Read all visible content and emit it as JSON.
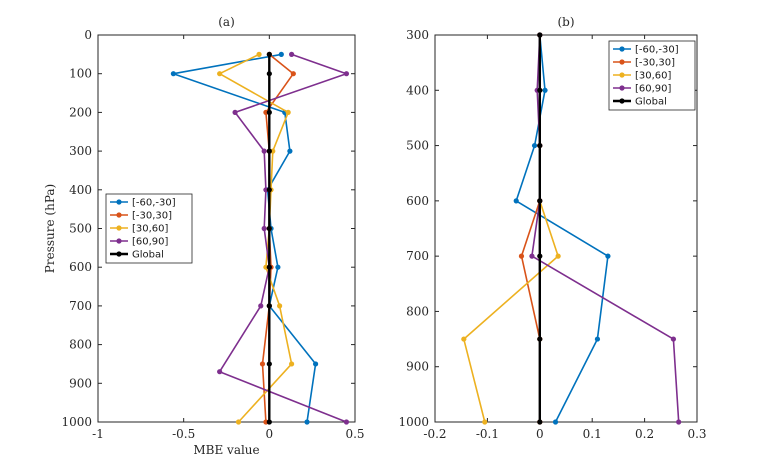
{
  "chart_data": [
    {
      "type": "line",
      "title": "(a)",
      "xlabel": "MBE value",
      "ylabel": "Pressure (hPa)",
      "xlim": [
        -1,
        0.5
      ],
      "ylim": [
        0,
        1000
      ],
      "y_reversed": true,
      "x_ticks": [
        -1,
        -0.5,
        0,
        0.5
      ],
      "x_tick_labels": [
        "-1",
        "-0.5",
        "0",
        "0.5"
      ],
      "y_ticks": [
        0,
        100,
        200,
        300,
        400,
        500,
        600,
        700,
        800,
        900,
        1000
      ],
      "y_tick_labels": [
        "0",
        "100",
        "200",
        "300",
        "400",
        "500",
        "600",
        "700",
        "800",
        "900",
        "1000"
      ],
      "legend_position": "center-left",
      "series": [
        {
          "name": "[-60,-30]",
          "color": "#0072BD",
          "points": [
            [
              0.07,
              50
            ],
            [
              -0.56,
              100
            ],
            [
              0.09,
              200
            ],
            [
              0.12,
              300
            ],
            [
              -0.01,
              400
            ],
            [
              0.01,
              500
            ],
            [
              0.05,
              600
            ],
            [
              0.0,
              700
            ],
            [
              0.27,
              850
            ],
            [
              0.22,
              1000
            ]
          ]
        },
        {
          "name": "[-30,30]",
          "color": "#D95319",
          "points": [
            [
              0.0,
              50
            ],
            [
              0.14,
              100
            ],
            [
              -0.02,
              200
            ],
            [
              0.0,
              300
            ],
            [
              0.0,
              400
            ],
            [
              0.0,
              500
            ],
            [
              0.01,
              600
            ],
            [
              0.0,
              700
            ],
            [
              -0.04,
              850
            ],
            [
              -0.02,
              1000
            ]
          ]
        },
        {
          "name": "[30,60]",
          "color": "#EDB120",
          "points": [
            [
              -0.06,
              50
            ],
            [
              -0.29,
              100
            ],
            [
              0.11,
              200
            ],
            [
              0.02,
              300
            ],
            [
              0.01,
              400
            ],
            [
              0.0,
              500
            ],
            [
              -0.02,
              600
            ],
            [
              0.06,
              700
            ],
            [
              0.13,
              850
            ],
            [
              -0.18,
              1000
            ]
          ]
        },
        {
          "name": "[60,90]",
          "color": "#7E2F8E",
          "points": [
            [
              0.13,
              50
            ],
            [
              0.45,
              100
            ],
            [
              -0.2,
              200
            ],
            [
              -0.03,
              300
            ],
            [
              -0.02,
              400
            ],
            [
              -0.03,
              500
            ],
            [
              0.0,
              600
            ],
            [
              -0.05,
              700
            ],
            [
              -0.29,
              870
            ],
            [
              0.45,
              1000
            ]
          ]
        },
        {
          "name": "Global",
          "color": "#000000",
          "points": [
            [
              0.0,
              50
            ],
            [
              0.0,
              100
            ],
            [
              0.0,
              200
            ],
            [
              0.0,
              300
            ],
            [
              0.0,
              400
            ],
            [
              0.0,
              500
            ],
            [
              0.0,
              600
            ],
            [
              0.0,
              700
            ],
            [
              0.0,
              850
            ],
            [
              0.0,
              1000
            ]
          ]
        }
      ]
    },
    {
      "type": "line",
      "title": "(b)",
      "xlabel": "",
      "ylabel": "",
      "xlim": [
        -0.2,
        0.3
      ],
      "ylim": [
        300,
        1000
      ],
      "y_reversed": true,
      "x_ticks": [
        -0.2,
        -0.1,
        0,
        0.1,
        0.2,
        0.3
      ],
      "x_tick_labels": [
        "-0.2",
        "-0.1",
        "0",
        "0.1",
        "0.2",
        "0.3"
      ],
      "y_ticks": [
        300,
        400,
        500,
        600,
        700,
        800,
        900,
        1000
      ],
      "y_tick_labels": [
        "300",
        "400",
        "500",
        "600",
        "700",
        "800",
        "900",
        "1000"
      ],
      "legend_position": "top-right",
      "series": [
        {
          "name": "[-60,-30]",
          "color": "#0072BD",
          "points": [
            [
              0.0,
              300
            ],
            [
              0.01,
              400
            ],
            [
              -0.01,
              500
            ],
            [
              -0.045,
              600
            ],
            [
              0.13,
              700
            ],
            [
              0.11,
              850
            ],
            [
              0.03,
              1000
            ]
          ]
        },
        {
          "name": "[-30,30]",
          "color": "#D95319",
          "points": [
            [
              0.0,
              300
            ],
            [
              0.0,
              400
            ],
            [
              0.0,
              500
            ],
            [
              0.0,
              600
            ],
            [
              -0.035,
              700
            ],
            [
              0.0,
              850
            ],
            [
              0.0,
              1000
            ]
          ]
        },
        {
          "name": "[30,60]",
          "color": "#EDB120",
          "points": [
            [
              0.0,
              300
            ],
            [
              0.0,
              400
            ],
            [
              0.0,
              500
            ],
            [
              0.0,
              600
            ],
            [
              0.035,
              700
            ],
            [
              -0.145,
              850
            ],
            [
              -0.105,
              1000
            ]
          ]
        },
        {
          "name": "[60,90]",
          "color": "#7E2F8E",
          "points": [
            [
              0.0,
              300
            ],
            [
              -0.005,
              400
            ],
            [
              0.0,
              500
            ],
            [
              0.0,
              600
            ],
            [
              -0.015,
              700
            ],
            [
              0.255,
              850
            ],
            [
              0.265,
              1000
            ]
          ]
        },
        {
          "name": "Global",
          "color": "#000000",
          "points": [
            [
              0.0,
              300
            ],
            [
              0.0,
              400
            ],
            [
              0.0,
              500
            ],
            [
              0.0,
              600
            ],
            [
              0.0,
              700
            ],
            [
              0.0,
              850
            ],
            [
              0.0,
              1000
            ]
          ]
        }
      ]
    }
  ]
}
